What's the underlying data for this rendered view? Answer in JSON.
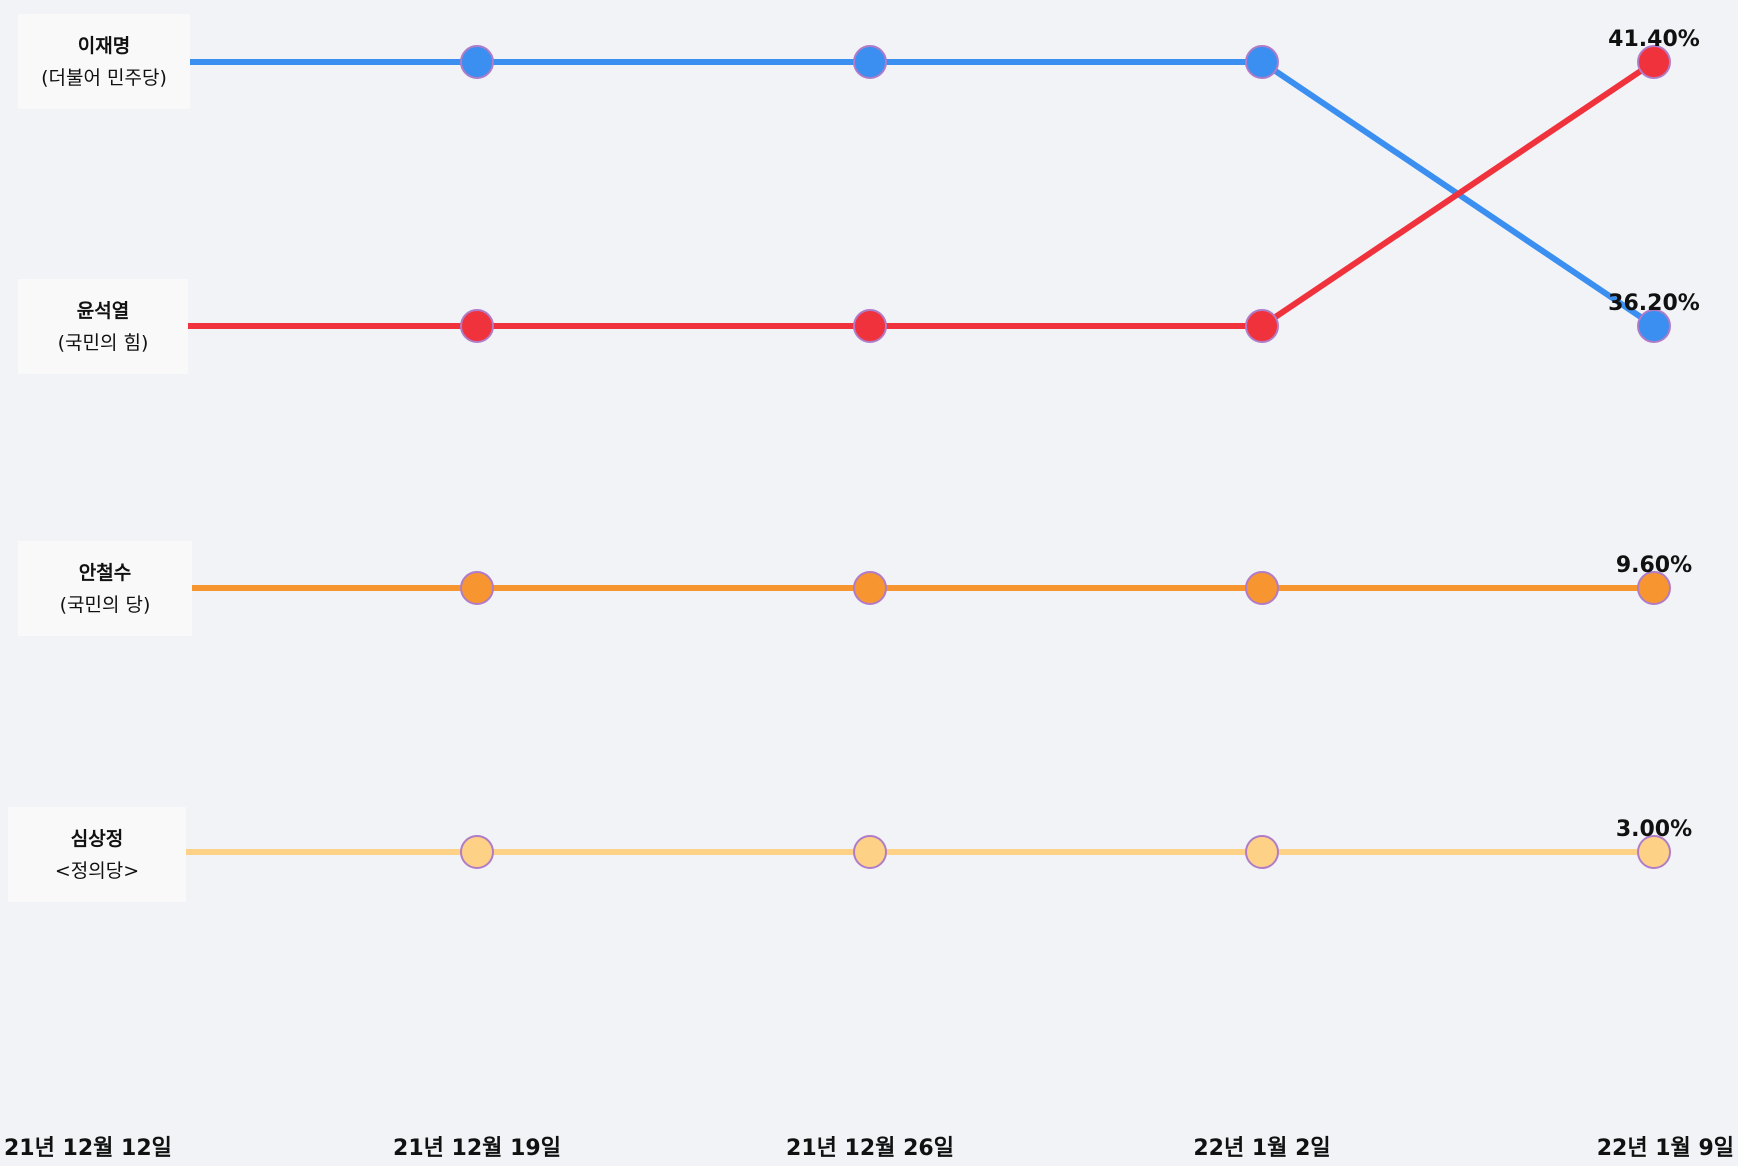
{
  "chart_data": {
    "type": "line",
    "chart_style": "bump",
    "x": [
      "21년 12월 12일",
      "21년 12월 19일",
      "21년 12월 26일",
      "22년 1월 2일",
      "22년 1월 9일"
    ],
    "series": [
      {
        "name": "이재명",
        "party": "(더불어 민주당)",
        "color": "#3a8ff0",
        "ranks": [
          1,
          1,
          1,
          1,
          2
        ],
        "final_value_label": "36.20%"
      },
      {
        "name": "윤석열",
        "party": "(국민의 힘)",
        "color": "#f0323c",
        "ranks": [
          2,
          2,
          2,
          2,
          1
        ],
        "final_value_label": "41.40%"
      },
      {
        "name": "안철수",
        "party": "(국민의 당)",
        "color": "#f79530",
        "ranks": [
          3,
          3,
          3,
          3,
          3
        ],
        "final_value_label": "9.60%"
      },
      {
        "name": "심상정",
        "party": "<정의당>",
        "color": "#fdd287",
        "ranks": [
          4,
          4,
          4,
          4,
          4
        ],
        "final_value_label": "3.00%"
      }
    ],
    "y_scale": "rank (1 = top)",
    "marker_outline_color": "#b07cc8",
    "grid": false,
    "legend": "left, inline labels"
  }
}
